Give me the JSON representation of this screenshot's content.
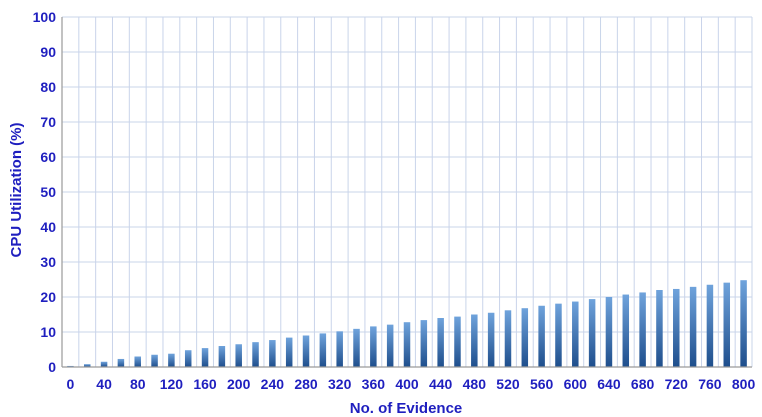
{
  "chart_data": {
    "type": "bar",
    "xlabel": "No. of Evidence",
    "ylabel": "CPU Utilization (%)",
    "ylim": [
      0,
      100
    ],
    "yticks": [
      "0",
      "10",
      "20",
      "30",
      "40",
      "50",
      "60",
      "70",
      "80",
      "90",
      "100"
    ],
    "xticks": [
      "0",
      "40",
      "80",
      "120",
      "160",
      "200",
      "240",
      "280",
      "320",
      "360",
      "400",
      "440",
      "480",
      "520",
      "560",
      "600",
      "640",
      "680",
      "720",
      "760",
      "800"
    ],
    "grid": true,
    "categories": [
      0,
      20,
      40,
      60,
      80,
      100,
      120,
      140,
      160,
      180,
      200,
      220,
      240,
      260,
      280,
      300,
      320,
      340,
      360,
      380,
      400,
      420,
      440,
      460,
      480,
      500,
      520,
      540,
      560,
      580,
      600,
      620,
      640,
      660,
      680,
      700,
      720,
      740,
      760,
      780,
      800
    ],
    "values": [
      0.3,
      0.8,
      1.5,
      2.3,
      3.0,
      3.5,
      3.8,
      4.8,
      5.4,
      6.0,
      6.5,
      7.1,
      7.7,
      8.4,
      9.0,
      9.6,
      10.2,
      10.9,
      11.6,
      12.1,
      12.8,
      13.4,
      14.0,
      14.4,
      15.0,
      15.5,
      16.2,
      16.8,
      17.5,
      18.1,
      18.7,
      19.4,
      20.0,
      20.7,
      21.3,
      22.0,
      22.3,
      22.9,
      23.5,
      24.1,
      24.8
    ],
    "colors": {
      "bar_top": "#6fa3dc",
      "bar_bottom": "#1e4e8c",
      "grid": "#c9d4ea",
      "axis": "#9a9a9a",
      "text": "#1f1fbf"
    }
  }
}
